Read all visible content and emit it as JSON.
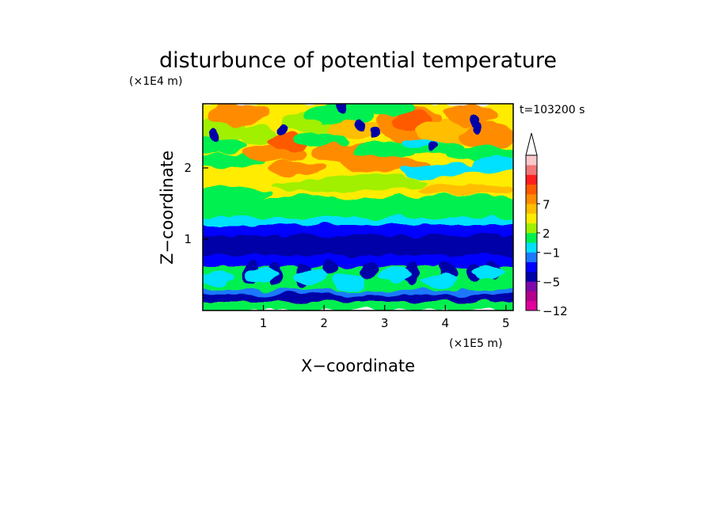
{
  "chart_data": {
    "type": "heatmap",
    "title": "disturbunce of potential temperature",
    "xlabel": "X−coordinate",
    "ylabel": "Z−coordinate",
    "x_unit": "(×1E5 m)",
    "y_unit": "(×1E4 m)",
    "time_label": "t=103200 s",
    "xlim": [
      0,
      5.12
    ],
    "ylim": [
      0,
      2.9
    ],
    "x_ticks": [
      {
        "v": 1,
        "label": "1"
      },
      {
        "v": 2,
        "label": "2"
      },
      {
        "v": 3,
        "label": "3"
      },
      {
        "v": 4,
        "label": "4"
      },
      {
        "v": 5,
        "label": "5"
      }
    ],
    "y_ticks": [
      {
        "v": 1,
        "label": "1"
      },
      {
        "v": 2,
        "label": "2"
      }
    ],
    "colorbar": {
      "levels": [
        {
          "color": "#e0009c"
        },
        {
          "color": "#b4008c"
        },
        {
          "color": "#7d0aa8"
        },
        {
          "color": "#0000a8"
        },
        {
          "color": "#0000ff"
        },
        {
          "color": "#1c78ff"
        },
        {
          "color": "#00e0ff"
        },
        {
          "color": "#00f050"
        },
        {
          "color": "#a0f000"
        },
        {
          "color": "#ffec00"
        },
        {
          "color": "#ffbe00"
        },
        {
          "color": "#ff8c00"
        },
        {
          "color": "#ff5a00"
        },
        {
          "color": "#ff1e1e"
        },
        {
          "color": "#f07878"
        },
        {
          "color": "#fac8c8"
        }
      ],
      "tick_labels": [
        {
          "boundary": 0,
          "label": "−12"
        },
        {
          "boundary": 3,
          "label": "−5"
        },
        {
          "boundary": 6,
          "label": "−1"
        },
        {
          "boundary": 8,
          "label": "2"
        },
        {
          "boundary": 11,
          "label": "7"
        }
      ],
      "extend": "max"
    },
    "field_structure": [
      {
        "z_range": [
          0.0,
          0.18
        ],
        "dominant": "light green",
        "levels": [
          7,
          8
        ]
      },
      {
        "z_range": [
          0.18,
          0.28
        ],
        "dominant": "blue / dark blue",
        "levels": [
          3,
          4
        ]
      },
      {
        "z_range": [
          0.28,
          0.6
        ],
        "dominant": "green with cyan patches",
        "levels": [
          6,
          7
        ]
      },
      {
        "z_range": [
          0.6,
          1.2
        ],
        "dominant": "blue / dark blue",
        "levels": [
          3,
          4,
          5
        ]
      },
      {
        "z_range": [
          1.2,
          1.45
        ],
        "dominant": "cyan / green",
        "levels": [
          6,
          7
        ]
      },
      {
        "z_range": [
          1.45,
          2.9
        ],
        "dominant": "yellow / orange with green and cyan bands",
        "levels": [
          6,
          7,
          8,
          9,
          10,
          11,
          12
        ]
      }
    ]
  }
}
